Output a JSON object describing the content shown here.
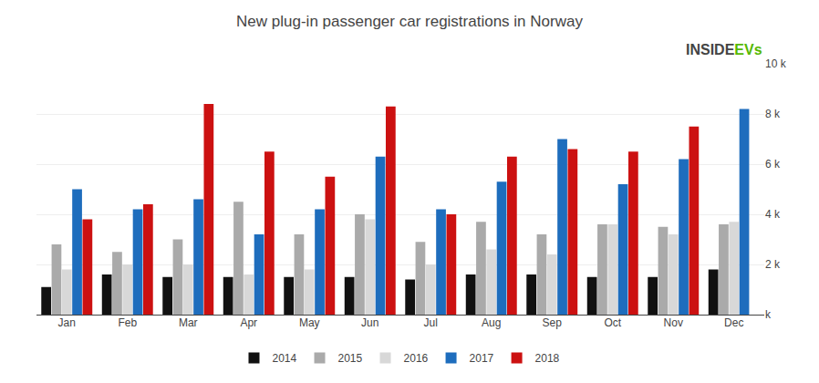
{
  "chart_data": {
    "type": "bar",
    "title": "New plug-in passenger car registrations in Norway",
    "categories": [
      "Jan",
      "Feb",
      "Mar",
      "Apr",
      "May",
      "Jun",
      "Jul",
      "Aug",
      "Sep",
      "Oct",
      "Nov",
      "Dec"
    ],
    "series": [
      {
        "name": "2014",
        "color": "#111111",
        "values": [
          1100,
          1600,
          1500,
          1500,
          1500,
          1500,
          1400,
          1600,
          1600,
          1500,
          1500,
          1800
        ]
      },
      {
        "name": "2015",
        "color": "#aaaaaa",
        "values": [
          2800,
          2500,
          3000,
          4500,
          3200,
          4000,
          2900,
          3700,
          3200,
          3600,
          3500,
          3600
        ]
      },
      {
        "name": "2016",
        "color": "#d8d8d8",
        "values": [
          1800,
          2000,
          2000,
          1600,
          1800,
          3800,
          2000,
          2600,
          2400,
          3600,
          3200,
          3700
        ]
      },
      {
        "name": "2017",
        "color": "#1e6dbd",
        "values": [
          5000,
          4200,
          4600,
          3200,
          4200,
          6300,
          4200,
          5300,
          7000,
          5200,
          6200,
          8200
        ]
      },
      {
        "name": "2018",
        "color": "#cc1111",
        "values": [
          3800,
          4400,
          8400,
          6500,
          5500,
          8300,
          4000,
          6300,
          6600,
          6500,
          7500,
          0
        ]
      }
    ],
    "ylim": [
      0,
      10000
    ],
    "yticks": [
      {
        "value": 0,
        "label": "k"
      },
      {
        "value": 2000,
        "label": "2 k"
      },
      {
        "value": 4000,
        "label": "4 k"
      },
      {
        "value": 6000,
        "label": "6 k"
      },
      {
        "value": 8000,
        "label": "8 k"
      },
      {
        "value": 10000,
        "label": "10 k"
      }
    ],
    "grid": true,
    "legend": "bottom",
    "annotations": [
      "INSIDE",
      "EVs"
    ]
  }
}
